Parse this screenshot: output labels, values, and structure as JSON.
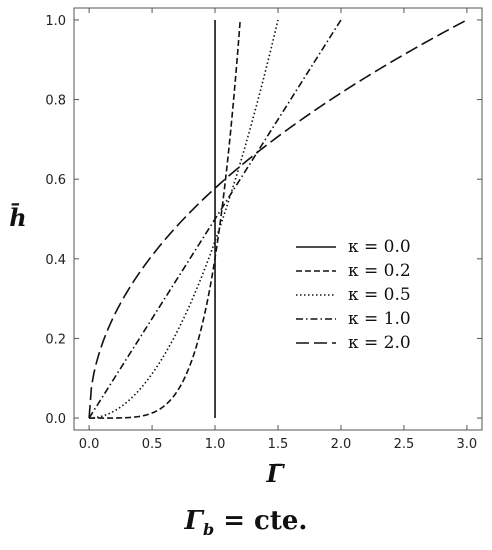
{
  "chart_data": {
    "type": "line",
    "title": "",
    "xlabel": "Γ̄",
    "ylabel": "h̄",
    "xlim": [
      -0.12,
      3.12
    ],
    "ylim": [
      -0.03,
      1.03
    ],
    "xticks": [
      "0.0",
      "0.5",
      "1.0",
      "1.5",
      "2.0",
      "2.5",
      "3.0"
    ],
    "yticks": [
      "0.0",
      "0.2",
      "0.4",
      "0.6",
      "0.8",
      "1.0"
    ],
    "grid": false,
    "legend_position": "right",
    "series": [
      {
        "name": "κ = 0.0",
        "kappa": 0.0,
        "dash": "solid",
        "x": [
          1.0,
          1.0
        ],
        "y": [
          0.0,
          1.0
        ]
      },
      {
        "name": "κ = 0.2",
        "kappa": 0.2,
        "dash": "dashed",
        "x": [
          0.0,
          0.2,
          0.4,
          0.6,
          0.8,
          1.0,
          1.1,
          1.2
        ],
        "y": [
          0.0,
          0.0001,
          0.005,
          0.038,
          0.161,
          0.49,
          0.77,
          1.0
        ]
      },
      {
        "name": "κ = 0.5",
        "kappa": 0.5,
        "dash": "dotted",
        "x": [
          0.0,
          0.25,
          0.5,
          0.75,
          1.0,
          1.25,
          1.5
        ],
        "y": [
          0.0,
          0.004,
          0.034,
          0.149,
          0.43,
          0.72,
          1.0
        ]
      },
      {
        "name": "κ = 1.0",
        "kappa": 1.0,
        "dash": "dash-dot",
        "x": [
          0.0,
          0.5,
          1.0,
          1.5,
          2.0
        ],
        "y": [
          0.0,
          0.25,
          0.5,
          0.75,
          1.0
        ]
      },
      {
        "name": "κ = 2.0",
        "kappa": 2.0,
        "dash": "long-dash",
        "x": [
          0.0,
          0.25,
          0.5,
          1.0,
          1.5,
          2.0,
          2.5,
          3.0
        ],
        "y": [
          0.0,
          0.289,
          0.408,
          0.577,
          0.707,
          0.816,
          0.913,
          1.0
        ]
      }
    ]
  },
  "caption": {
    "main": "Γ",
    "sub": "b",
    "rest": " = cte."
  }
}
